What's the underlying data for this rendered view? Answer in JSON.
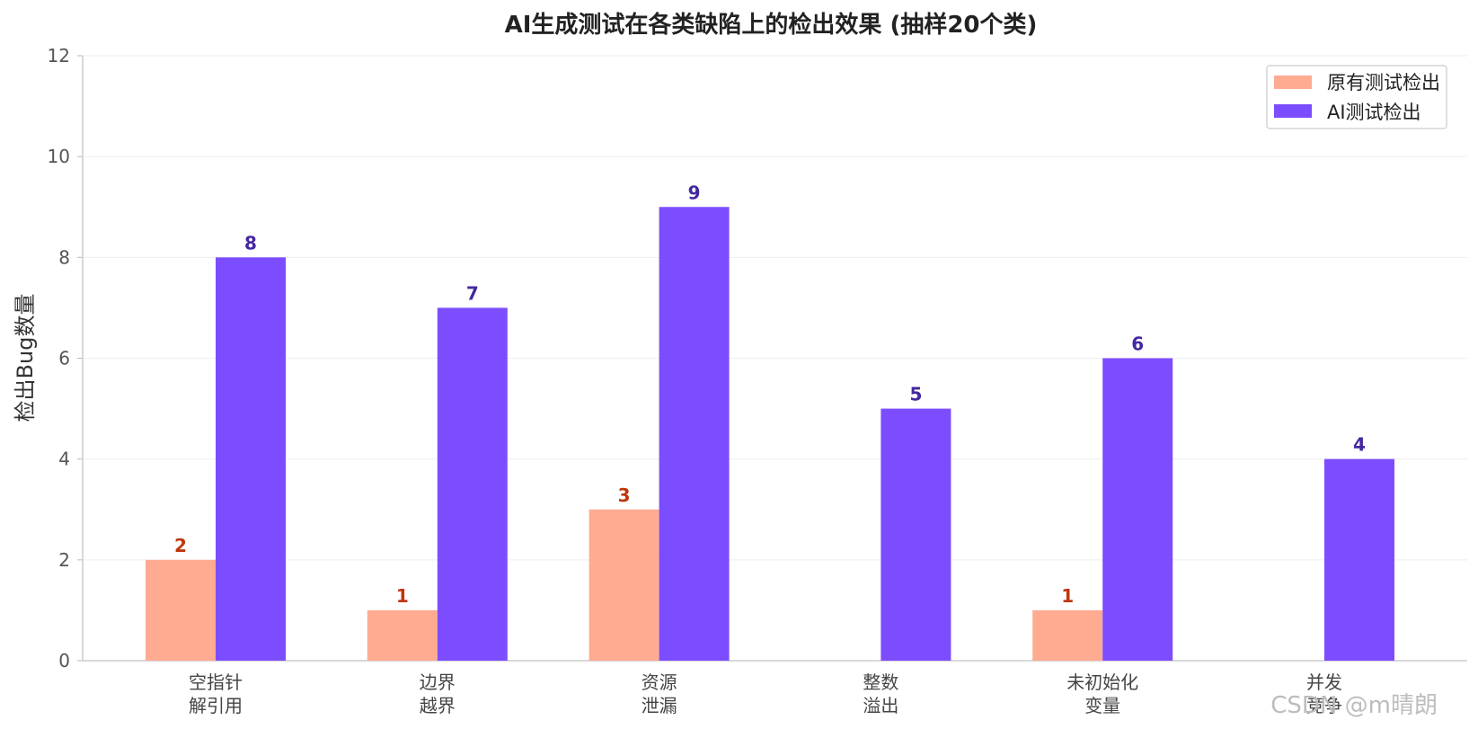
{
  "chart_data": {
    "type": "bar",
    "title": "AI生成测试在各类缺陷上的检出效果 (抽样20个类)",
    "xlabel": "",
    "ylabel": "检出Bug数量",
    "ylim": [
      0,
      12
    ],
    "yticks": [
      0,
      2,
      4,
      6,
      8,
      10,
      12
    ],
    "grid": true,
    "legend_position": "top-right",
    "categories": [
      [
        "空指针",
        "解引用"
      ],
      [
        "边界",
        "越界"
      ],
      [
        "资源",
        "泄漏"
      ],
      [
        "整数",
        "溢出"
      ],
      [
        "未初始化",
        "变量"
      ],
      [
        "并发",
        "竞争"
      ]
    ],
    "series": [
      {
        "name": "原有测试检出",
        "values": [
          2,
          1,
          3,
          0,
          1,
          0
        ],
        "color": "#ffab91",
        "label_color": "#bf360c"
      },
      {
        "name": "AI测试检出",
        "values": [
          8,
          7,
          9,
          5,
          6,
          4
        ],
        "color": "#7c4dff",
        "label_color": "#4527a0"
      }
    ]
  },
  "watermark": "CSDN @m晴朗"
}
